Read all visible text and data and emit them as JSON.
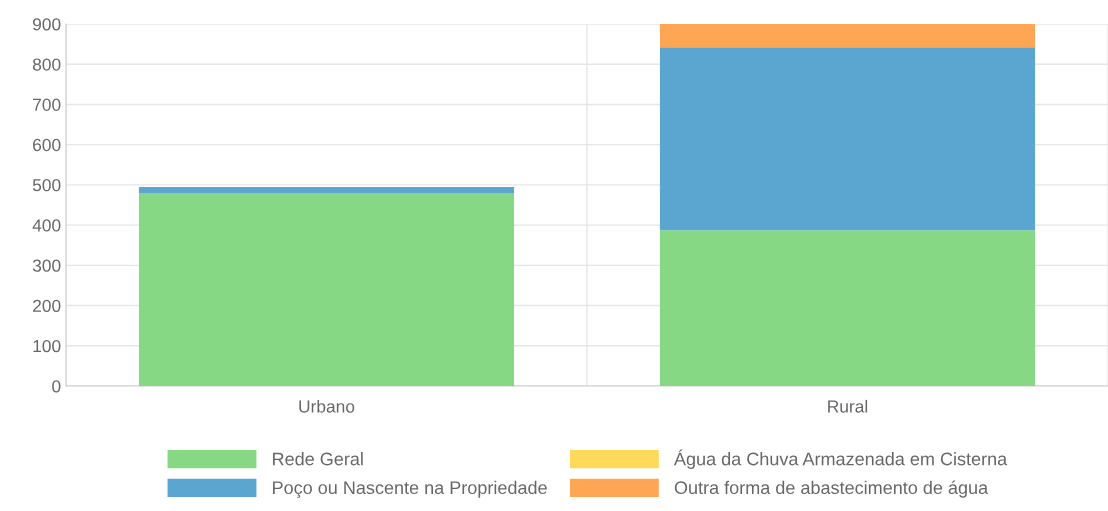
{
  "chart_data": {
    "type": "bar",
    "stacked": true,
    "categories": [
      "Urbano",
      "Rural"
    ],
    "series": [
      {
        "name": "Rede Geral",
        "color": "#87d884",
        "values": [
          480,
          387
        ]
      },
      {
        "name": "Poço ou Nascente na Propriedade",
        "color": "#5aa6d0",
        "values": [
          15,
          455
        ]
      },
      {
        "name": "Água da Chuva Armazenada em Cisterna",
        "color": "#ffd95a",
        "values": [
          0,
          0
        ]
      },
      {
        "name": "Outra forma de abastecimento de água",
        "color": "#ffa655",
        "values": [
          0,
          58
        ]
      }
    ],
    "ylim": [
      0,
      900
    ],
    "yticks": [
      0,
      100,
      200,
      300,
      400,
      500,
      600,
      700,
      800,
      900
    ],
    "grid": true,
    "legend": "bottom"
  }
}
